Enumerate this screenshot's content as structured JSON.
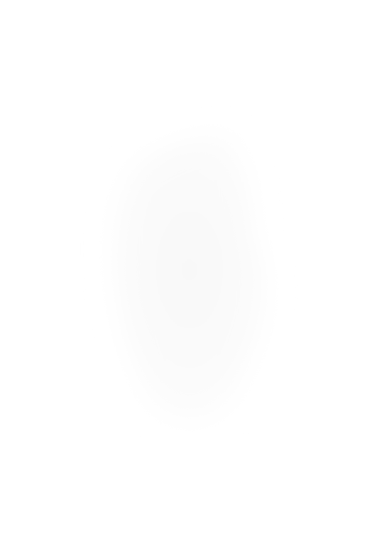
{
  "screen": {
    "background_color": "#ffffff",
    "shape_fill_color": "#fafafa",
    "shape_core_color": "#f8f8f8",
    "shape_edge_color": "#ffffff"
  }
}
